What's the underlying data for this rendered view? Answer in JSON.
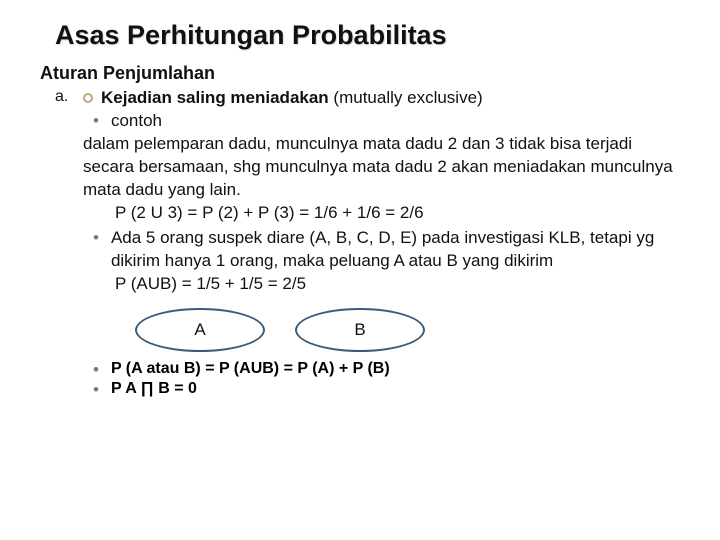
{
  "title": "Asas Perhitungan Probabilitas",
  "subtitle": "Aturan Penjumlahan",
  "item_a": {
    "letter": "a.",
    "bold": "Kejadian saling meniadakan",
    "rest": " (mutually exclusive)"
  },
  "bullet1_label": "contoh",
  "para": "dalam pelemparan dadu, munculnya mata  dadu 2 dan 3 tidak bisa    terjadi secara bersamaan, shg munculnya mata dadu 2 akan        meniadakan munculnya mata dadu yang lain.",
  "formula1": "P (2 U 3) = P (2) + P (3) = 1/6 + 1/6 = 2/6",
  "bullet2": "Ada 5 orang suspek diare (A, B, C, D, E) pada investigasi KLB, tetapi yg dikirim hanya 1 orang, maka peluang A atau B yang dikirim",
  "formula2": "P (AUB) = 1/5 + 1/5 = 2/5",
  "ellipse_a": "A",
  "ellipse_b": "B",
  "bottom1": "P (A atau B) = P (AUB) = P (A) + P (B)",
  "bottom2": "P A ∏ B = 0",
  "colors": {
    "ellipse_border": "#3a5b7a",
    "bullet_color": "#8b7a4a",
    "dot_border": "#b8a77a"
  }
}
